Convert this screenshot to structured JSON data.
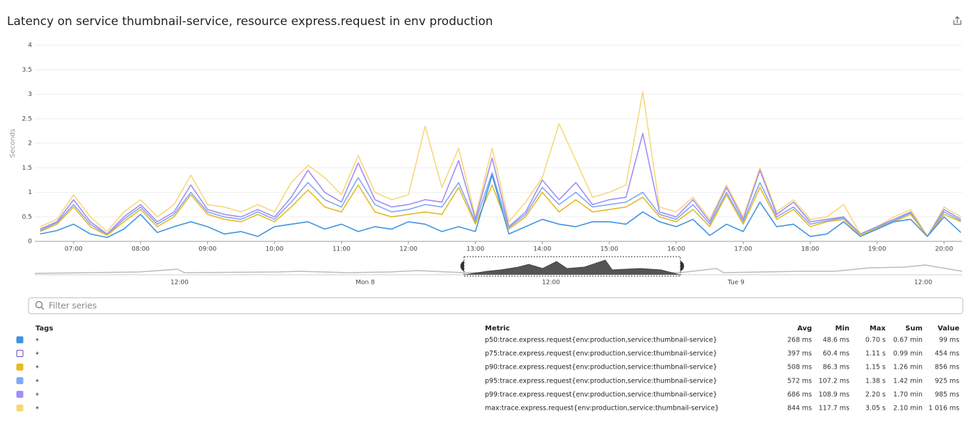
{
  "chart_data": {
    "type": "line",
    "title": "Latency on service thumbnail-service, resource express.request in env production",
    "y_label": "Seconds",
    "x": [
      6.5,
      6.75,
      7,
      7.25,
      7.5,
      7.75,
      8,
      8.25,
      8.5,
      8.75,
      9,
      9.25,
      9.5,
      9.75,
      10,
      10.25,
      10.5,
      10.75,
      11,
      11.25,
      11.5,
      11.75,
      12,
      12.25,
      12.5,
      12.75,
      13,
      13.25,
      13.5,
      13.75,
      14,
      14.25,
      14.5,
      14.75,
      15,
      15.25,
      15.5,
      15.75,
      16,
      16.25,
      16.5,
      16.75,
      17,
      17.25,
      17.5,
      17.75,
      18,
      18.25,
      18.5,
      18.75,
      19,
      19.25,
      19.5,
      19.75,
      20,
      20.25
    ],
    "series": [
      {
        "name": "max:trace.express.request{env:production,service:thumbnail-service}",
        "color": "#f8d77a",
        "values": [
          0.3,
          0.45,
          0.95,
          0.5,
          0.2,
          0.6,
          0.85,
          0.5,
          0.75,
          1.35,
          0.75,
          0.7,
          0.6,
          0.75,
          0.6,
          1.2,
          1.55,
          1.3,
          0.95,
          1.75,
          1.0,
          0.85,
          0.95,
          2.35,
          1.1,
          1.9,
          0.5,
          1.9,
          0.4,
          0.8,
          1.3,
          2.4,
          1.65,
          0.9,
          1.0,
          1.15,
          3.05,
          0.7,
          0.6,
          0.9,
          0.45,
          1.15,
          0.5,
          1.5,
          0.6,
          0.85,
          0.45,
          0.5,
          0.75,
          0.15,
          0.3,
          0.5,
          0.65,
          0.1,
          0.7,
          0.5
        ]
      },
      {
        "name": "p99:trace.express.request{env:production,service:thumbnail-service}",
        "color": "#a38cf5",
        "values": [
          0.25,
          0.4,
          0.85,
          0.4,
          0.15,
          0.5,
          0.75,
          0.4,
          0.6,
          1.15,
          0.65,
          0.55,
          0.5,
          0.65,
          0.5,
          0.9,
          1.45,
          1.0,
          0.8,
          1.6,
          0.85,
          0.7,
          0.75,
          0.85,
          0.8,
          1.65,
          0.45,
          1.7,
          0.3,
          0.6,
          1.25,
          0.85,
          1.2,
          0.75,
          0.85,
          0.9,
          2.2,
          0.6,
          0.5,
          0.85,
          0.4,
          1.1,
          0.45,
          1.45,
          0.55,
          0.8,
          0.4,
          0.45,
          0.5,
          0.15,
          0.3,
          0.45,
          0.6,
          0.1,
          0.65,
          0.45
        ]
      },
      {
        "name": "p95:trace.express.request{env:production,service:thumbnail-service}",
        "color": "#7fa8f5",
        "values": [
          0.22,
          0.38,
          0.75,
          0.35,
          0.13,
          0.45,
          0.7,
          0.35,
          0.55,
          1.0,
          0.6,
          0.5,
          0.45,
          0.6,
          0.45,
          0.8,
          1.2,
          0.85,
          0.7,
          1.3,
          0.75,
          0.6,
          0.65,
          0.75,
          0.7,
          1.2,
          0.4,
          1.4,
          0.28,
          0.55,
          1.1,
          0.75,
          1.0,
          0.7,
          0.75,
          0.8,
          1.0,
          0.55,
          0.45,
          0.75,
          0.35,
          1.0,
          0.4,
          1.2,
          0.5,
          0.7,
          0.35,
          0.42,
          0.48,
          0.14,
          0.28,
          0.42,
          0.58,
          0.1,
          0.6,
          0.42
        ]
      },
      {
        "name": "p90:trace.express.request{env:production,service:thumbnail-service}",
        "color": "#e8b923",
        "values": [
          0.2,
          0.35,
          0.7,
          0.3,
          0.12,
          0.4,
          0.65,
          0.3,
          0.5,
          0.95,
          0.55,
          0.45,
          0.4,
          0.55,
          0.4,
          0.7,
          1.05,
          0.7,
          0.6,
          1.15,
          0.6,
          0.5,
          0.55,
          0.6,
          0.55,
          1.1,
          0.35,
          1.15,
          0.25,
          0.5,
          1.0,
          0.6,
          0.85,
          0.6,
          0.65,
          0.7,
          0.9,
          0.5,
          0.4,
          0.65,
          0.3,
          0.95,
          0.35,
          1.1,
          0.45,
          0.65,
          0.3,
          0.4,
          0.45,
          0.13,
          0.27,
          0.4,
          0.55,
          0.1,
          0.55,
          0.4
        ]
      },
      {
        "name": "p75:trace.express.request{env:production,service:thumbnail-service}",
        "color": "#ffffff",
        "values": [
          0.17,
          0.3,
          0.55,
          0.25,
          0.1,
          0.33,
          0.5,
          0.25,
          0.4,
          0.7,
          0.45,
          0.38,
          0.32,
          0.45,
          0.33,
          0.55,
          0.8,
          0.55,
          0.48,
          0.85,
          0.48,
          0.4,
          0.45,
          0.48,
          0.42,
          0.8,
          0.28,
          0.9,
          0.2,
          0.4,
          0.75,
          0.45,
          0.65,
          0.48,
          0.5,
          0.55,
          0.7,
          0.4,
          0.33,
          0.5,
          0.25,
          0.75,
          0.28,
          0.85,
          0.36,
          0.5,
          0.25,
          0.33,
          0.37,
          0.11,
          0.23,
          0.33,
          0.48,
          0.09,
          0.45,
          0.33
        ]
      },
      {
        "name": "p50:trace.express.request{env:production,service:thumbnail-service}",
        "color": "#3d94e0",
        "values": [
          0.15,
          0.22,
          0.35,
          0.15,
          0.08,
          0.25,
          0.55,
          0.18,
          0.3,
          0.4,
          0.3,
          0.15,
          0.2,
          0.1,
          0.3,
          0.35,
          0.4,
          0.25,
          0.35,
          0.2,
          0.3,
          0.25,
          0.4,
          0.35,
          0.2,
          0.3,
          0.2,
          1.35,
          0.15,
          0.3,
          0.45,
          0.35,
          0.3,
          0.4,
          0.4,
          0.35,
          0.6,
          0.4,
          0.3,
          0.45,
          0.12,
          0.35,
          0.2,
          0.8,
          0.3,
          0.35,
          0.1,
          0.15,
          0.4,
          0.1,
          0.25,
          0.4,
          0.45,
          0.1,
          0.5,
          0.18
        ]
      }
    ],
    "xlim": [
      6.42,
      20.27
    ],
    "xticks": [
      {
        "value": 7,
        "label": "07:00"
      },
      {
        "value": 8,
        "label": "08:00"
      },
      {
        "value": 9,
        "label": "09:00"
      },
      {
        "value": 10,
        "label": "10:00"
      },
      {
        "value": 11,
        "label": "11:00"
      },
      {
        "value": 12,
        "label": "12:00"
      },
      {
        "value": 13,
        "label": "13:00"
      },
      {
        "value": 14,
        "label": "14:00"
      },
      {
        "value": 15,
        "label": "15:00"
      },
      {
        "value": 16,
        "label": "16:00"
      },
      {
        "value": 17,
        "label": "17:00"
      },
      {
        "value": 18,
        "label": "18:00"
      },
      {
        "value": 19,
        "label": "19:00"
      },
      {
        "value": 20,
        "label": "20:00"
      }
    ],
    "ylim": [
      0,
      4
    ],
    "yticks": [
      0,
      0.5,
      1,
      1.5,
      2,
      2.5,
      3,
      3.5,
      4
    ],
    "grid": true
  },
  "navigator": {
    "labels": [
      "12:00",
      "Mon 8",
      "12:00",
      "Tue 9",
      "12:00"
    ]
  },
  "filter": {
    "placeholder": "Filter series"
  },
  "legend_table": {
    "headers": [
      "Tags",
      "Metric",
      "Avg",
      "Min",
      "Max",
      "Sum",
      "Value"
    ],
    "rows": [
      [
        "*",
        "268 ms",
        "48.6 ms",
        "0.70 s",
        "0.67 min",
        "99 ms"
      ],
      [
        "*",
        "397 ms",
        "60.4 ms",
        "1.11 s",
        "0.99 min",
        "454 ms"
      ],
      [
        "*",
        "508 ms",
        "86.3 ms",
        "1.15 s",
        "1.26 min",
        "856 ms"
      ],
      [
        "*",
        "572 ms",
        "107.2 ms",
        "1.38 s",
        "1.42 min",
        "925 ms"
      ],
      [
        "*",
        "686 ms",
        "108.9 ms",
        "2.20 s",
        "1.70 min",
        "985 ms"
      ],
      [
        "*",
        "844 ms",
        "117.7 ms",
        "3.05 s",
        "2.10 min",
        "1 016 ms"
      ]
    ]
  }
}
